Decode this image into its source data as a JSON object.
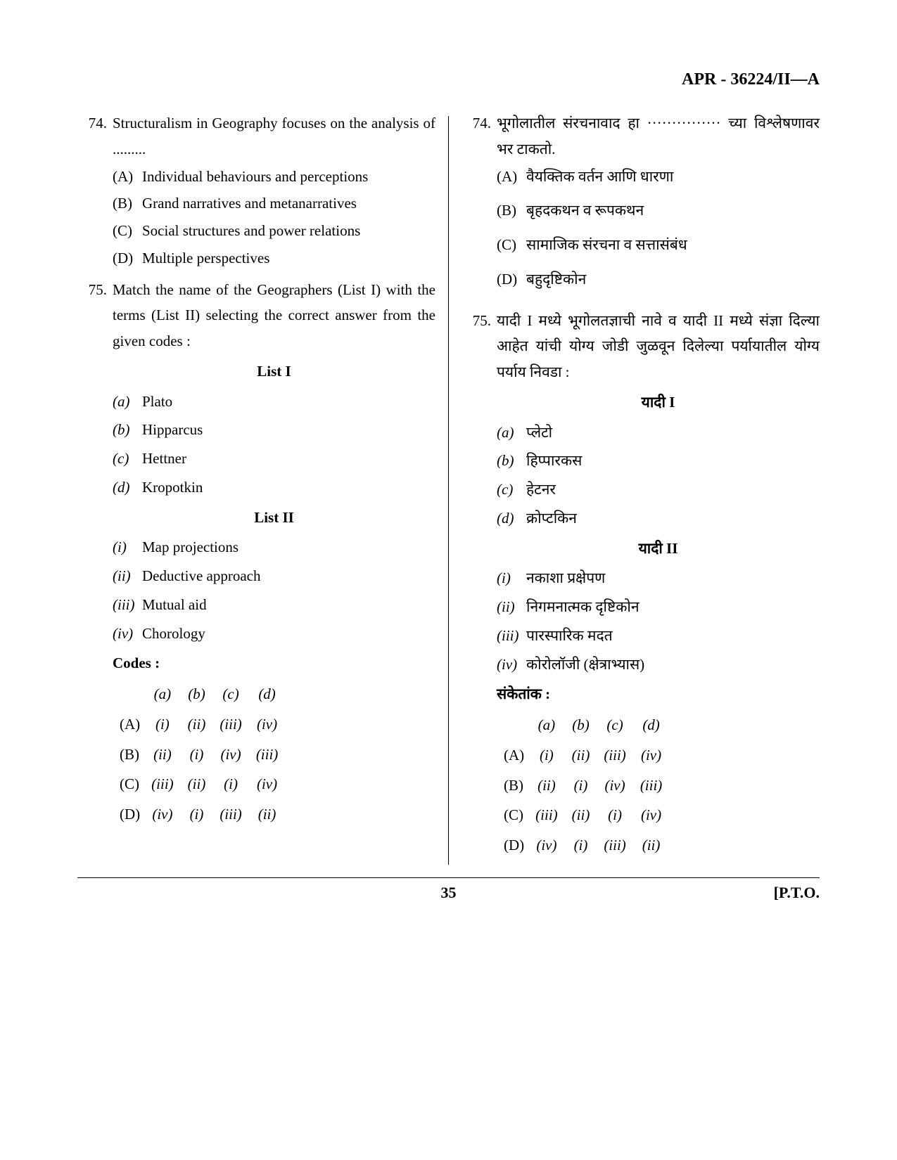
{
  "header": "APR - 36224/II—A",
  "page_number": "35",
  "pto": "[P.T.O.",
  "english": {
    "q74": {
      "num": "74.",
      "text": "Structuralism in Geography focuses on the analysis of .........",
      "options": {
        "A": "Individual behaviours and perceptions",
        "B": "Grand narratives and metanarratives",
        "C": "Social structures and power relations",
        "D": "Multiple perspectives"
      }
    },
    "q75": {
      "num": "75.",
      "text": "Match the name of the Geographers (List I) with the terms (List II) selecting the correct answer from the given codes :",
      "list1_heading": "List I",
      "list1": {
        "a": "Plato",
        "b": "Hipparcus",
        "c": "Hettner",
        "d": "Kropotkin"
      },
      "list2_heading": "List II",
      "list2": {
        "i": "Map projections",
        "ii": "Deductive approach",
        "iii": "Mutual aid",
        "iv": "Chorology"
      },
      "codes_heading": "Codes :",
      "code_cols": {
        "a": "(a)",
        "b": "(b)",
        "c": "(c)",
        "d": "(d)"
      },
      "code_rows": {
        "A": {
          "label": "(A)",
          "a": "(i)",
          "b": "(ii)",
          "c": "(iii)",
          "d": "(iv)"
        },
        "B": {
          "label": "(B)",
          "a": "(ii)",
          "b": "(i)",
          "c": "(iv)",
          "d": "(iii)"
        },
        "C": {
          "label": "(C)",
          "a": "(iii)",
          "b": "(ii)",
          "c": "(i)",
          "d": "(iv)"
        },
        "D": {
          "label": "(D)",
          "a": "(iv)",
          "b": "(i)",
          "c": "(iii)",
          "d": "(ii)"
        }
      }
    }
  },
  "marathi": {
    "q74": {
      "num": "74.",
      "text": "भूगोलातील संरचनावाद हा ··············· च्या विश्लेषणावर भर टाकतो.",
      "options": {
        "A": "वैयक्तिक वर्तन आणि धारणा",
        "B": "बृहदकथन व रूपकथन",
        "C": "सामाजिक संरचना व सत्तासंबंध",
        "D": "बहुदृष्टिकोन"
      }
    },
    "q75": {
      "num": "75.",
      "text": "यादी I मध्ये भूगोलतज्ञाची नावे व यादी II मध्ये संज्ञा दिल्या आहेत यांची योग्य जोडी जुळवून दिलेल्या पर्यायातील योग्य पर्याय निवडा :",
      "list1_heading": "यादी I",
      "list1": {
        "a": "प्लेटो",
        "b": "हिप्पारकस",
        "c": "हेटनर",
        "d": "क्रोप्टकिन"
      },
      "list2_heading": "यादी II",
      "list2": {
        "i": "नकाशा प्रक्षेपण",
        "ii": "निगमनात्मक दृष्टिकोन",
        "iii": "पारस्पारिक मदत",
        "iv": "कोरोलॉजी (क्षेत्राभ्यास)"
      },
      "codes_heading": "संकेतांक :",
      "code_cols": {
        "a": "(a)",
        "b": "(b)",
        "c": "(c)",
        "d": "(d)"
      },
      "code_rows": {
        "A": {
          "label": "(A)",
          "a": "(i)",
          "b": "(ii)",
          "c": "(iii)",
          "d": "(iv)"
        },
        "B": {
          "label": "(B)",
          "a": "(ii)",
          "b": "(i)",
          "c": "(iv)",
          "d": "(iii)"
        },
        "C": {
          "label": "(C)",
          "a": "(iii)",
          "b": "(ii)",
          "c": "(i)",
          "d": "(iv)"
        },
        "D": {
          "label": "(D)",
          "a": "(iv)",
          "b": "(i)",
          "c": "(iii)",
          "d": "(ii)"
        }
      }
    }
  },
  "labels": {
    "A": "(A)",
    "B": "(B)",
    "C": "(C)",
    "D": "(D)",
    "a": "(a)",
    "b": "(b)",
    "c": "(c)",
    "d": "(d)",
    "i": "(i)",
    "ii": "(ii)",
    "iii": "(iii)",
    "iv": "(iv)"
  }
}
